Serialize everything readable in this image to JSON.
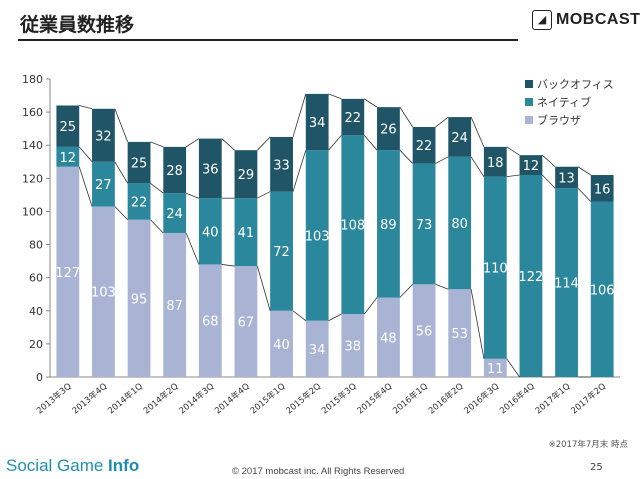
{
  "header": {
    "title": "従業員数推移",
    "logo_text": "MOBCAST"
  },
  "footer": {
    "note": "※2017年7月末 時点",
    "brand_a": "Social Game ",
    "brand_b": "Info",
    "copyright": "© 2017 mobcast inc. All Rights Reserved",
    "page": "25"
  },
  "colors": {
    "browser": "#a9b4d4",
    "native": "#2b879c",
    "backoffice": "#1f5566",
    "axis": "#888888"
  },
  "chart_data": {
    "type": "bar",
    "stacked": true,
    "categories": [
      "2013年3Q",
      "2013年4Q",
      "2014年1Q",
      "2014年2Q",
      "2014年3Q",
      "2014年4Q",
      "2015年1Q",
      "2015年2Q",
      "2015年3Q",
      "2015年4Q",
      "2016年1Q",
      "2016年2Q",
      "2016年3Q",
      "2016年4Q",
      "2017年1Q",
      "2017年2Q"
    ],
    "series": [
      {
        "name": "ブラウザ",
        "color": "#a9b4d4",
        "values": [
          127,
          103,
          95,
          87,
          68,
          67,
          40,
          34,
          38,
          48,
          56,
          53,
          11,
          null,
          null,
          null
        ]
      },
      {
        "name": "ネイティブ",
        "color": "#2b879c",
        "values": [
          12,
          27,
          22,
          24,
          40,
          41,
          72,
          103,
          108,
          89,
          73,
          80,
          110,
          122,
          114,
          106
        ]
      },
      {
        "name": "バックオフィス",
        "color": "#1f5566",
        "values": [
          25,
          32,
          25,
          28,
          36,
          29,
          33,
          34,
          22,
          26,
          22,
          24,
          18,
          12,
          13,
          16
        ]
      }
    ],
    "legend_order": [
      "バックオフィス",
      "ネイティブ",
      "ブラウザ"
    ],
    "ylim": [
      0,
      180
    ],
    "yticks": [
      "0",
      "20",
      "40",
      "60",
      "80",
      "100",
      "120",
      "140",
      "160",
      "180"
    ],
    "legend_position": "top-right",
    "grid": false
  }
}
